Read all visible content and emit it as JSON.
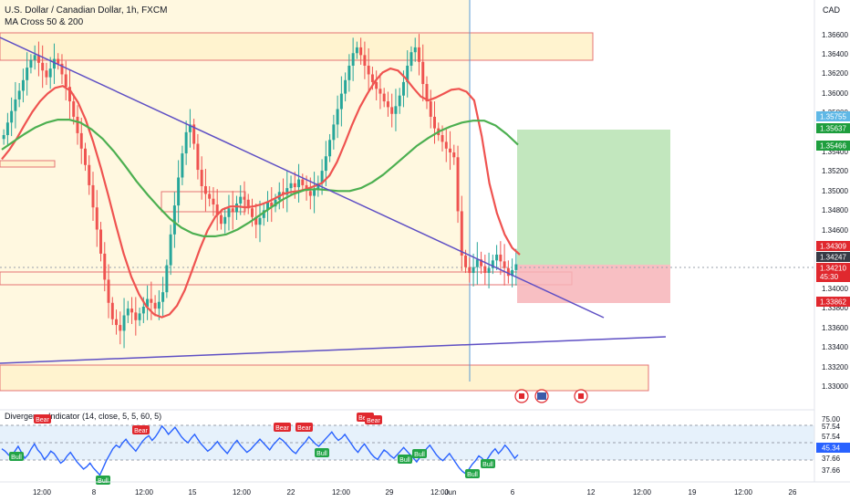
{
  "header": {
    "symbol_title": "U.S. Dollar / Canadian Dollar, 1h, FXCM",
    "indicator_label": "MA Cross 50 & 200",
    "currency": "CAD"
  },
  "oscillator": {
    "title": "Divergence Indicator (14, close, 5, 5, 60, 5)",
    "current_value": "45.34",
    "axis_labels": [
      "75.00",
      "57.54",
      "57.54",
      "37.66",
      "37.66"
    ],
    "bull_labels": [
      "Bull",
      "Bull",
      "Bull",
      "Bull",
      "Bull",
      "Bull",
      "Bull"
    ],
    "bear_labels": [
      "Bear",
      "Bear",
      "Bear",
      "Bear",
      "Bear",
      "Bear"
    ],
    "values": [
      52,
      50,
      47,
      45,
      50,
      54,
      49,
      44,
      47,
      52,
      56,
      51,
      48,
      43,
      46,
      50,
      48,
      44,
      40,
      42,
      46,
      49,
      45,
      41,
      38,
      35,
      37,
      40,
      36,
      33,
      30,
      36,
      42,
      47,
      52,
      55,
      53,
      57,
      60,
      56,
      53,
      50,
      54,
      58,
      61,
      63,
      59,
      62,
      66,
      71,
      68,
      64,
      67,
      70,
      66,
      62,
      59,
      57,
      61,
      64,
      60,
      56,
      53,
      50,
      52,
      55,
      58,
      54,
      51,
      48,
      52,
      56,
      59,
      55,
      52,
      49,
      51,
      54,
      57,
      60,
      57,
      54,
      51,
      55,
      58,
      61,
      59,
      56,
      53,
      50,
      48,
      52,
      55,
      58,
      62,
      59,
      56,
      54,
      57,
      60,
      63,
      66,
      62,
      59,
      61,
      64,
      60,
      56,
      52,
      49,
      53,
      56,
      52,
      48,
      45,
      43,
      47,
      51,
      49,
      46,
      44,
      47,
      50,
      53,
      50,
      47,
      44,
      41,
      45,
      48,
      52,
      55,
      51,
      47,
      44,
      42,
      45,
      48,
      44,
      40,
      36,
      33,
      31,
      35,
      39,
      42,
      46,
      44,
      41,
      45,
      49,
      52,
      48,
      51,
      55,
      52,
      48,
      44,
      47
    ]
  },
  "chart_data": {
    "type": "candlestick",
    "title": "U.S. Dollar / Canadian Dollar, 1h, FXCM",
    "ylim": [
      1.3288,
      1.368
    ],
    "x_tick_labels": [
      "12:00",
      "8",
      "12:00",
      "15",
      "12:00",
      "22",
      "12:00",
      "29",
      "12:00",
      "Jun",
      "6",
      "12",
      "12:00",
      "19",
      "12:00",
      "26"
    ],
    "y_tick_labels": [
      "1.36600",
      "1.36400",
      "1.36200",
      "1.36000",
      "1.35800",
      "1.35400",
      "1.35200",
      "1.35000",
      "1.34800",
      "1.34600",
      "1.34000",
      "1.33800",
      "1.33600",
      "1.33400",
      "1.33200",
      "1.33000"
    ],
    "price_badges": [
      {
        "label": "1.35755",
        "value": 1.35755,
        "color": "#5fb8e6"
      },
      {
        "label": "1.35637",
        "value": 1.35637,
        "color": "#1e9e3e"
      },
      {
        "label": "1.35466",
        "value": 1.35466,
        "color": "#1e9e3e"
      },
      {
        "label": "1.34309",
        "value": 1.34309,
        "color": "#e0282e"
      },
      {
        "label": "1.34247",
        "value": 1.34247,
        "color": "#363a45"
      },
      {
        "label": "1.34210",
        "value": 1.3421,
        "color": "#e0282e"
      },
      {
        "label": "45:30",
        "value": 1.3412,
        "color": "#e0282e"
      },
      {
        "label": "1.33862",
        "value": 1.33862,
        "color": "#e0282e"
      }
    ],
    "close_series": [
      1.3555,
      1.3568,
      1.358,
      1.3592,
      1.3601,
      1.3612,
      1.3625,
      1.3633,
      1.3638,
      1.363,
      1.3622,
      1.3615,
      1.3624,
      1.3634,
      1.3629,
      1.3618,
      1.3605,
      1.359,
      1.3574,
      1.3557,
      1.3541,
      1.3524,
      1.3503,
      1.348,
      1.3457,
      1.3432,
      1.3405,
      1.3381,
      1.3364,
      1.3358,
      1.3352,
      1.3368,
      1.3375,
      1.3371,
      1.3363,
      1.337,
      1.3377,
      1.3385,
      1.3381,
      1.3375,
      1.3382,
      1.3392,
      1.342,
      1.3452,
      1.3482,
      1.3511,
      1.3536,
      1.3558,
      1.3566,
      1.3546,
      1.3519,
      1.3502,
      1.3494,
      1.3489,
      1.3483,
      1.3472,
      1.3463,
      1.347,
      1.3479,
      1.3475,
      1.3484,
      1.3491,
      1.3488,
      1.3479,
      1.347,
      1.3462,
      1.3469,
      1.3477,
      1.3485,
      1.3481,
      1.3488,
      1.3496,
      1.3493,
      1.35,
      1.3505,
      1.3501,
      1.3509,
      1.3503,
      1.3497,
      1.3492,
      1.3499,
      1.3505,
      1.3518,
      1.3533,
      1.355,
      1.3566,
      1.3582,
      1.3598,
      1.3612,
      1.3627,
      1.364,
      1.3646,
      1.3638,
      1.3627,
      1.3618,
      1.361,
      1.3603,
      1.3598,
      1.359,
      1.3584,
      1.3577,
      1.3585,
      1.3596,
      1.361,
      1.3627,
      1.3641,
      1.3646,
      1.3631,
      1.3608,
      1.359,
      1.3574,
      1.3562,
      1.3555,
      1.3548,
      1.3541,
      1.3537,
      1.3532,
      1.3476,
      1.343,
      1.3418,
      1.3412,
      1.3418,
      1.3426,
      1.3419,
      1.3412,
      1.3417,
      1.3425,
      1.3431,
      1.3424,
      1.3417,
      1.3409,
      1.3415,
      1.3421
    ],
    "series": [
      {
        "name": "MA 50",
        "color": "#ef5350",
        "values": [
          1.353,
          1.354,
          1.3552,
          1.3566,
          1.3579,
          1.359,
          1.3598,
          1.3604,
          1.3606,
          1.3601,
          1.3589,
          1.3571,
          1.3548,
          1.3521,
          1.3492,
          1.3461,
          1.3432,
          1.3408,
          1.339,
          1.3377,
          1.3369,
          1.3366,
          1.3369,
          1.3378,
          1.3394,
          1.3415,
          1.3437,
          1.3456,
          1.347,
          1.3478,
          1.3481,
          1.3481,
          1.348,
          1.3481,
          1.3483,
          1.3486,
          1.349,
          1.3494,
          1.3496,
          1.3497,
          1.3499,
          1.3502,
          1.3505,
          1.3513,
          1.3527,
          1.3546,
          1.3566,
          1.3584,
          1.3598,
          1.3611,
          1.362,
          1.3624,
          1.3622,
          1.3614,
          1.3604,
          1.3595,
          1.3591,
          1.3594,
          1.3598,
          1.3602,
          1.3603,
          1.36,
          1.3591,
          1.3554,
          1.3505,
          1.3474,
          1.3452,
          1.3438,
          1.3431
        ]
      },
      {
        "name": "MA 200",
        "color": "#4caf50",
        "values": [
          1.354,
          1.3548,
          1.3556,
          1.3563,
          1.3568,
          1.3571,
          1.3571,
          1.3568,
          1.3561,
          1.3551,
          1.3538,
          1.3523,
          1.3507,
          1.3493,
          1.348,
          1.3468,
          1.3459,
          1.3453,
          1.345,
          1.345,
          1.3452,
          1.3457,
          1.3464,
          1.3472,
          1.348,
          1.3488,
          1.3494,
          1.3498,
          1.3499,
          1.3498,
          1.3497,
          1.3497,
          1.35,
          1.3506,
          1.3514,
          1.3524,
          1.3534,
          1.3544,
          1.3552,
          1.3559,
          1.3564,
          1.3568,
          1.357,
          1.357,
          1.3565,
          1.3556,
          1.3545
        ]
      }
    ]
  }
}
